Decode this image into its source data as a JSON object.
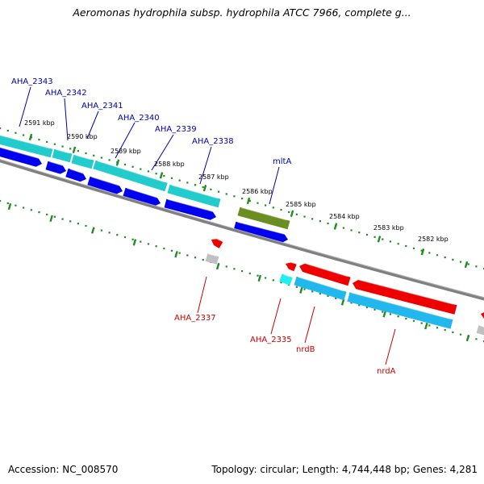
{
  "header": {
    "title": "Aeromonas hydrophila subsp. hydrophila ATCC 7966, complete g..."
  },
  "footer": {
    "accession": "Accession: NC_008570",
    "summary": "Topology: circular; Length: 4,744,448 bp; Genes: 4,281"
  },
  "colors": {
    "forward_cds": "#0000ee",
    "reverse_cds": "#ee0000",
    "rna_teal": "#22cccc",
    "rna_light_blue": "#22b8ee",
    "mlta": "#6b8e23",
    "pseudo_gray": "#c0c0c0",
    "backbone": "#808080",
    "tick": "#228b22",
    "forward_label": "#0000aa",
    "reverse_label": "#cc0000"
  },
  "kbp_labels": [
    "2591 kbp",
    "2590 kbp",
    "2589 kbp",
    "2588 kbp",
    "2587 kbp",
    "2586 kbp",
    "2585 kbp",
    "2584 kbp",
    "2583 kbp",
    "2582 kbp"
  ],
  "forward_gene_labels": [
    "AHA_2343",
    "AHA_2342",
    "AHA_2341",
    "AHA_2340",
    "AHA_2339",
    "AHA_2338",
    "mltA"
  ],
  "reverse_gene_labels": [
    "AHA_2337",
    "AHA_2335",
    "nrdB",
    "nrdA"
  ]
}
